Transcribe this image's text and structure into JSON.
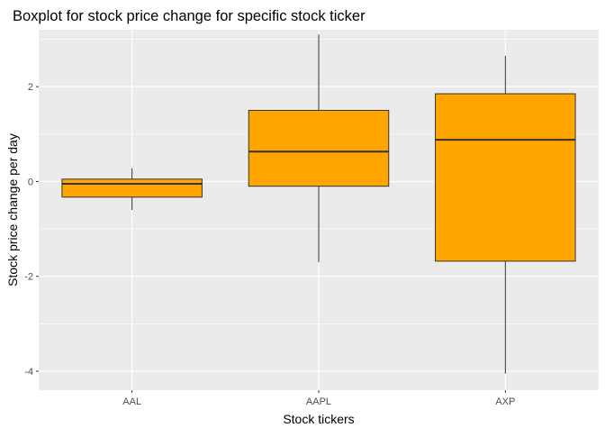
{
  "chart_data": {
    "type": "boxplot",
    "title": "Boxplot for stock price change for specific stock ticker",
    "xlabel": "Stock tickers",
    "ylabel": "Stock price change per day",
    "ylim": [
      -4.4,
      3.2
    ],
    "yticks": [
      -4,
      -2,
      0,
      2
    ],
    "grid": true,
    "legend": "none",
    "categories": [
      "AAL",
      "AAPL",
      "AXP"
    ],
    "boxes": [
      {
        "category": "AAL",
        "min": -0.6,
        "q1": -0.33,
        "median": -0.05,
        "q3": 0.05,
        "max": 0.28
      },
      {
        "category": "AAPL",
        "min": -1.7,
        "q1": -0.1,
        "median": 0.63,
        "q3": 1.5,
        "max": 3.1
      },
      {
        "category": "AXP",
        "min": -4.05,
        "q1": -1.68,
        "median": 0.88,
        "q3": 1.85,
        "max": 2.65
      }
    ],
    "colors": {
      "box_fill": "#FFA500",
      "box_stroke": "#333333",
      "panel_background": "#EBEBEB",
      "grid": "#FFFFFF",
      "text": "#000000",
      "tick_text": "#4D4D4D"
    }
  }
}
